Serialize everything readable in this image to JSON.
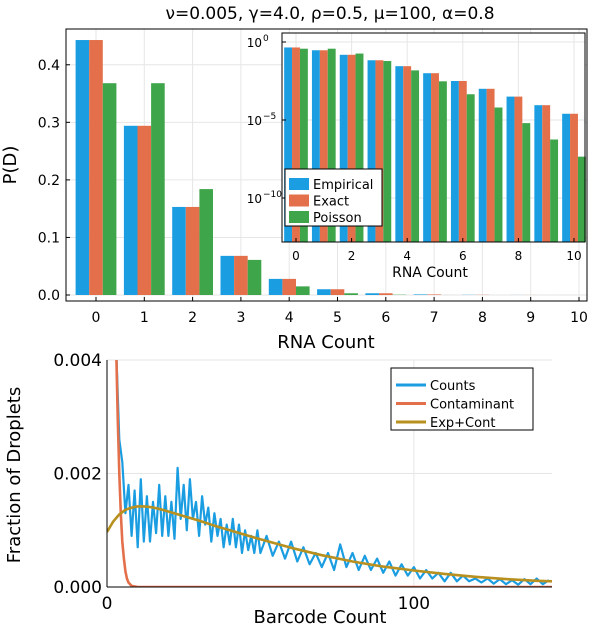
{
  "chart_data": [
    {
      "type": "bar",
      "title": "ν=0.005, γ=4.0, ρ=0.5, μ=100, α=0.8",
      "xlabel": "RNA Count",
      "ylabel": "P(D)",
      "categories": [
        "0",
        "1",
        "2",
        "3",
        "4",
        "5",
        "6",
        "7",
        "8",
        "9",
        "10"
      ],
      "ylim": [
        0,
        0.45
      ],
      "yticks": [
        "0.0",
        "0.1",
        "0.2",
        "0.3",
        "0.4"
      ],
      "ytick_values": [
        0,
        0.1,
        0.2,
        0.3,
        0.4
      ],
      "grid": true,
      "series": [
        {
          "name": "Empirical",
          "color": "#1b9de2",
          "values": [
            0.443,
            0.294,
            0.153,
            0.068,
            0.028,
            0.01,
            0.003,
            0.001,
            0.0003,
            0.0001,
            2e-05
          ]
        },
        {
          "name": "Exact",
          "color": "#e3704a",
          "values": [
            0.443,
            0.294,
            0.153,
            0.068,
            0.028,
            0.01,
            0.003,
            0.001,
            0.0003,
            0.0001,
            2e-05
          ]
        },
        {
          "name": "Poisson",
          "color": "#3ea54b",
          "values": [
            0.368,
            0.368,
            0.184,
            0.061,
            0.015,
            0.003,
            0.0005,
            7e-05,
            9e-06,
            1e-06,
            1e-07
          ]
        }
      ]
    },
    {
      "type": "bar",
      "xlabel": "RNA Count",
      "scale": "log",
      "categories": [
        "0",
        "1",
        "2",
        "3",
        "4",
        "5",
        "6",
        "7",
        "8",
        "9",
        "10"
      ],
      "xticks": [
        "0",
        "2",
        "4",
        "6",
        "8",
        "10"
      ],
      "yticks": [
        "10^0",
        "10^−5",
        "10^−10"
      ],
      "ylim_log10": [
        -13,
        0
      ],
      "legend": {
        "position": "bottom-left",
        "entries": [
          "Empirical",
          "Exact",
          "Poisson"
        ]
      },
      "series": [
        {
          "name": "Empirical",
          "color": "#1b9de2",
          "log10_values": [
            -0.35,
            -0.53,
            -0.82,
            -1.17,
            -1.55,
            -2.0,
            -2.5,
            -3.0,
            -3.5,
            -4.05,
            -4.6
          ]
        },
        {
          "name": "Exact",
          "color": "#e3704a",
          "log10_values": [
            -0.35,
            -0.53,
            -0.82,
            -1.17,
            -1.55,
            -2.0,
            -2.5,
            -3.0,
            -3.5,
            -4.05,
            -4.6
          ]
        },
        {
          "name": "Poisson",
          "color": "#3ea54b",
          "log10_values": [
            -0.43,
            -0.43,
            -0.74,
            -1.22,
            -1.82,
            -2.52,
            -3.35,
            -4.2,
            -5.2,
            -6.25,
            -7.35
          ]
        }
      ]
    },
    {
      "type": "line",
      "xlabel": "Barcode Count",
      "ylabel": "Fraction of Droplets",
      "xlim": [
        0,
        145
      ],
      "ylim": [
        0,
        0.004
      ],
      "xticks": [
        "0",
        "100"
      ],
      "xtick_values": [
        0,
        100
      ],
      "yticks": [
        "0.000",
        "0.002",
        "0.004"
      ],
      "ytick_values": [
        0,
        0.002,
        0.004
      ],
      "grid": true,
      "legend": {
        "position": "top-right",
        "entries": [
          "Counts",
          "Contaminant",
          "Exp+Cont"
        ]
      },
      "series": [
        {
          "name": "Counts",
          "color": "#1b9de2",
          "x": [
            3,
            4,
            5,
            6,
            7,
            8,
            9,
            10,
            11,
            12,
            13,
            14,
            15,
            16,
            17,
            18,
            19,
            20,
            21,
            22,
            23,
            24,
            25,
            26,
            27,
            28,
            29,
            30,
            31,
            32,
            33,
            34,
            35,
            36,
            37,
            38,
            39,
            40,
            41,
            42,
            43,
            44,
            45,
            46,
            47,
            48,
            49,
            50,
            52,
            54,
            56,
            58,
            60,
            62,
            64,
            66,
            68,
            70,
            72,
            74,
            76,
            78,
            80,
            82,
            84,
            86,
            88,
            90,
            92,
            94,
            96,
            98,
            100,
            102,
            104,
            106,
            108,
            110,
            112,
            114,
            116,
            118,
            120,
            122,
            124,
            126,
            128,
            130,
            132,
            134,
            136,
            138,
            140,
            142,
            144
          ],
          "y": [
            0.0042,
            0.0026,
            0.0022,
            0.0013,
            0.0018,
            0.0009,
            0.0017,
            0.0007,
            0.0019,
            0.0008,
            0.0016,
            0.0008,
            0.0015,
            0.00095,
            0.0018,
            0.0009,
            0.0016,
            0.0009,
            0.0015,
            0.00085,
            0.0021,
            0.0012,
            0.0018,
            0.001,
            0.0019,
            0.0012,
            0.0015,
            0.0009,
            0.0016,
            0.0011,
            0.0014,
            0.0008,
            0.0013,
            0.0009,
            0.0012,
            0.0007,
            0.0011,
            0.00075,
            0.0012,
            0.0007,
            0.0011,
            0.0006,
            0.001,
            0.00065,
            0.0009,
            0.0006,
            0.001,
            0.0006,
            0.0009,
            0.00055,
            0.0008,
            0.0005,
            0.0008,
            0.00045,
            0.0007,
            0.0004,
            0.0006,
            0.00035,
            0.0006,
            0.0003,
            0.00075,
            0.00035,
            0.0006,
            0.0003,
            0.00055,
            0.0003,
            0.0005,
            0.00025,
            0.00045,
            0.0002,
            0.0004,
            0.0002,
            0.00035,
            0.00015,
            0.0003,
            0.00015,
            0.00025,
            0.0001,
            0.00025,
            0.0001,
            0.0002,
            0.0001,
            0.00015,
            8e-05,
            0.00015,
            6e-05,
            0.00014,
            5e-05,
            0.00012,
            4e-05,
            0.00014,
            5e-05,
            0.00015,
            5e-05,
            0.00012
          ]
        },
        {
          "name": "Contaminant",
          "color": "#e3704a",
          "x": [
            3,
            3.5,
            4,
            4.5,
            5,
            5.5,
            6,
            6.5,
            7,
            8,
            10,
            20,
            40,
            80,
            145
          ],
          "y": [
            0.0042,
            0.003,
            0.002,
            0.0013,
            0.0008,
            0.0005,
            0.00028,
            0.00015,
            8e-05,
            2e-05,
            0,
            0,
            0,
            0,
            0
          ]
        },
        {
          "name": "Exp+Cont",
          "color": "#b8901f",
          "x": [
            0,
            2,
            4,
            6,
            8,
            10,
            12,
            14,
            16,
            18,
            20,
            25,
            30,
            35,
            40,
            50,
            60,
            70,
            80,
            90,
            100,
            110,
            120,
            130,
            140,
            145
          ],
          "y": [
            0.00097,
            0.00115,
            0.00128,
            0.00136,
            0.0014,
            0.00142,
            0.00142,
            0.00141,
            0.00139,
            0.00136,
            0.00133,
            0.00125,
            0.00117,
            0.00108,
            0.001,
            0.00084,
            0.00069,
            0.00056,
            0.00045,
            0.00036,
            0.00029,
            0.00023,
            0.00018,
            0.00014,
            0.00011,
            0.0001
          ]
        }
      ]
    }
  ]
}
